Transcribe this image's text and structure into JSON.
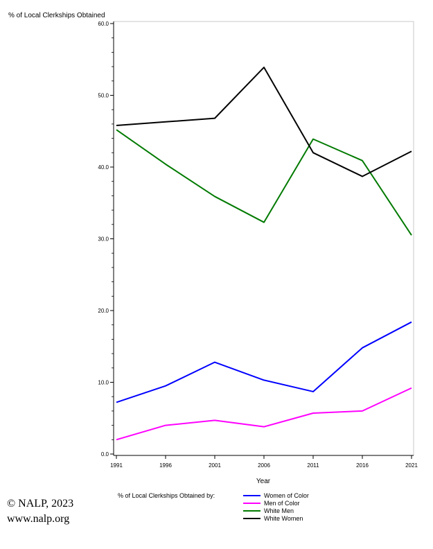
{
  "chart_data": {
    "type": "line",
    "ylabel": "% of Local Clerkships Obtained",
    "xlabel": "Year",
    "x": [
      1991,
      1996,
      2001,
      2006,
      2011,
      2016,
      2021
    ],
    "ylim": [
      0,
      60
    ],
    "y_ticks": [
      "0.0",
      "10.0",
      "20.0",
      "30.0",
      "40.0",
      "50.0",
      "60.0"
    ],
    "x_ticks": [
      "1991",
      "1996",
      "2001",
      "2006",
      "2011",
      "2016",
      "2021"
    ],
    "legend_title": "% of Local Clerkships Obtained by:",
    "legend_position": "bottom",
    "grid": false,
    "series": [
      {
        "name": "Women of Color",
        "color": "#0000ff",
        "values": [
          7.2,
          9.5,
          12.8,
          10.3,
          8.7,
          14.8,
          18.4
        ]
      },
      {
        "name": "Men of Color",
        "color": "#ff00ff",
        "values": [
          2.0,
          4.0,
          4.7,
          3.8,
          5.7,
          6.0,
          9.2
        ]
      },
      {
        "name": "White Men",
        "color": "#007a00",
        "values": [
          45.2,
          40.4,
          35.9,
          32.3,
          43.9,
          40.9,
          30.5
        ]
      },
      {
        "name": "White Women",
        "color": "#000000",
        "values": [
          45.8,
          46.3,
          46.8,
          53.9,
          42.0,
          38.7,
          42.2
        ]
      }
    ]
  },
  "credits": {
    "copyright": "© NALP, 2023",
    "website": "www.nalp.org"
  }
}
